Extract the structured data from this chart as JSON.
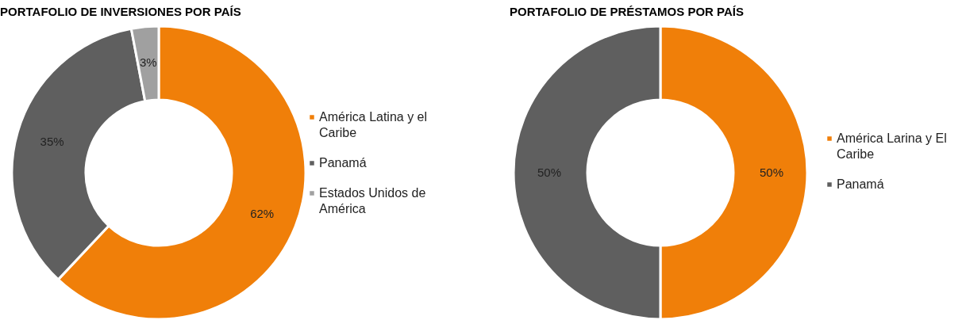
{
  "chart_data": [
    {
      "type": "donut",
      "title": "PORTAFOLIO DE INVERSIONES POR PAÍS",
      "categories": [
        "América Latina y el Caribe",
        "Panamá",
        "Estados Unidos de América"
      ],
      "values": [
        62,
        35,
        3
      ],
      "colors": [
        "#f07f09",
        "#5f5f5f",
        "#a0a0a0"
      ],
      "value_labels": [
        "62%",
        "35%",
        "3%"
      ],
      "legend": "right"
    },
    {
      "type": "donut",
      "title": "PORTAFOLIO DE PRÉSTAMOS POR PAÍS",
      "categories": [
        "América Larina y El Caribe",
        "Panamá"
      ],
      "values": [
        50,
        50
      ],
      "colors": [
        "#f07f09",
        "#5f5f5f"
      ],
      "value_labels": [
        "50%",
        "50%"
      ],
      "legend": "right"
    }
  ]
}
